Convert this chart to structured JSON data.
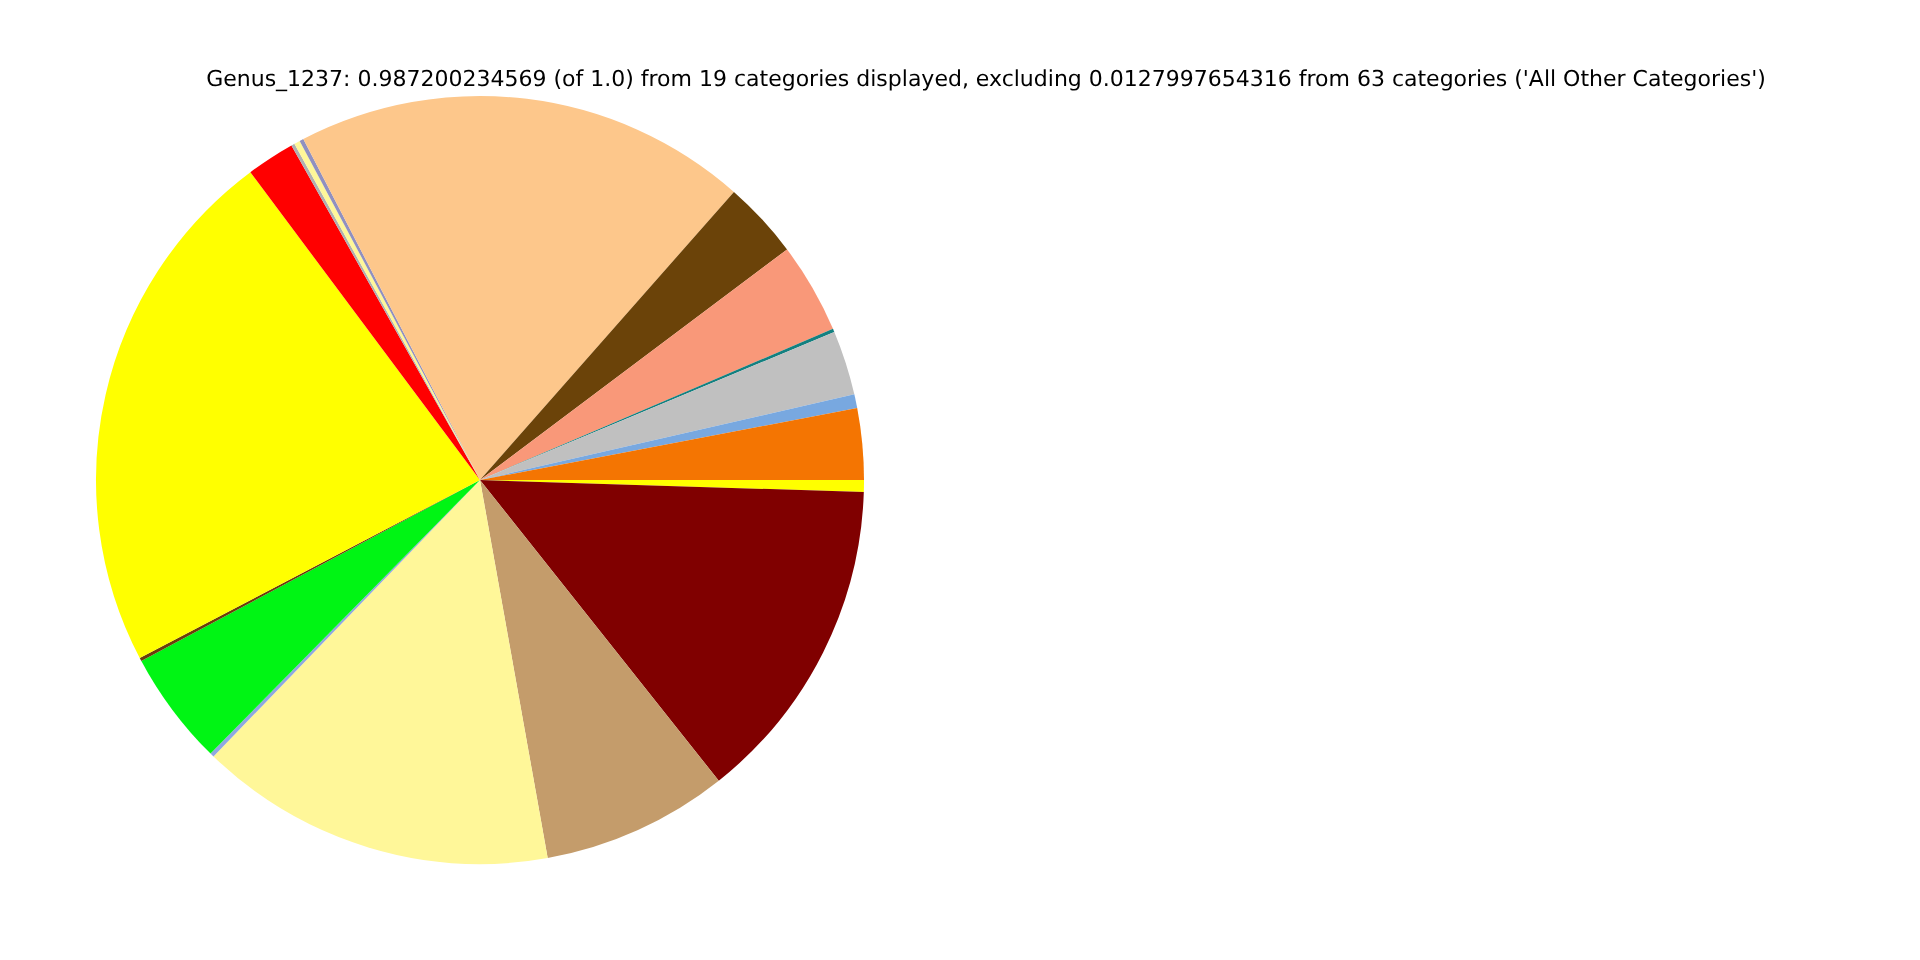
{
  "chart_data": {
    "type": "pie",
    "title": "Genus_1237: 0.987200234569 (of 1.0) from 19 categories displayed, excluding 0.0127997654316 from 63 categories ('All Other Categories')",
    "categories": [
      null,
      null,
      null,
      null,
      null,
      null,
      null,
      null,
      null,
      null,
      null,
      null,
      null,
      null,
      null,
      null,
      null,
      null,
      null
    ],
    "values": [
      0.5,
      13.82,
      7.86,
      15.03,
      0.17,
      4.81,
      0.14,
      22.47,
      2.03,
      0.14,
      0.25,
      0.17,
      19.11,
      3.25,
      3.81,
      0.14,
      2.72,
      0.58,
      3.0
    ],
    "colors": [
      "#ffff00",
      "#800000",
      "#c49c6b",
      "#fff799",
      "#8fa8e0",
      "#00f514",
      "#6b3d0a",
      "#ffff00",
      "#ff0000",
      "#b0b0b0",
      "#fff799",
      "#9090c0",
      "#fdc78b",
      "#6b4309",
      "#f99879",
      "#138080",
      "#c0c0c0",
      "#78a8e0",
      "#f47502"
    ],
    "legend": false
  }
}
